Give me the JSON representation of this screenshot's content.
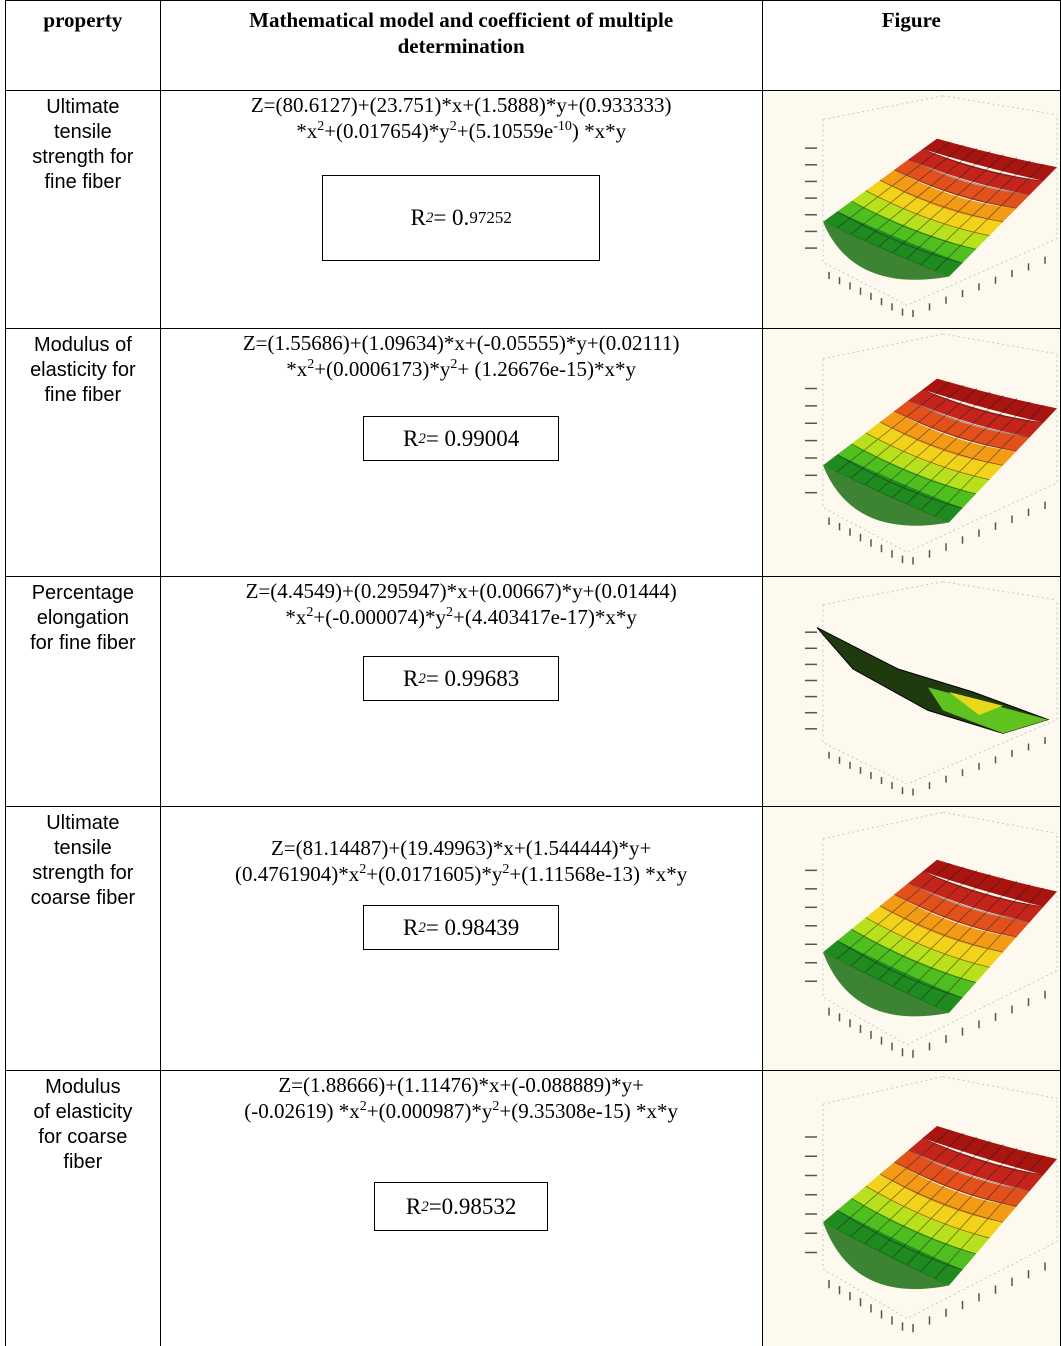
{
  "header": {
    "property": "property",
    "model": "Mathematical model and coefficient  of multiple determination",
    "figure": "Figure"
  },
  "rows": [
    {
      "property": [
        "Ultimate",
        "tensile",
        "strength for",
        "fine fiber"
      ],
      "eq_line1": "Z=(80.6127)+(23.751)*x+(1.5888)*y+(0.933333)",
      "eq_line2": [
        "*x",
        "2",
        "+(0.017654)*y",
        "2",
        "+(5.10559e",
        "-10",
        ") *x*y"
      ],
      "r2_label": "R",
      "r2_sup": "2",
      "r2_eq": " = 0.",
      "r2_value": "97252",
      "figure_icon": "3d-surface-plot"
    },
    {
      "property": [
        "Modulus of",
        "elasticity for",
        "fine fiber"
      ],
      "eq_line1": "Z=(1.55686)+(1.09634)*x+(-0.05555)*y+(0.02111)",
      "eq_line2": [
        "*x",
        "2",
        "+(0.0006173)*y",
        "2",
        "+ (1.26676e-15)*x*y"
      ],
      "r2_label": "R",
      "r2_sup": "2",
      "r2_text": " = 0.99004",
      "figure_icon": "3d-surface-plot"
    },
    {
      "property": [
        "Percentage",
        "elongation",
        "for fine fiber"
      ],
      "eq_line1": "Z=(4.4549)+(0.295947)*x+(0.00667)*y+(0.01444)",
      "eq_line2": [
        "*x",
        "2",
        "+(-0.000074)*y",
        "2",
        "+(4.403417e-17)*x*y"
      ],
      "r2_label": "R",
      "r2_sup": "2",
      "r2_text": " = 0.99683",
      "figure_icon": "3d-surface-plot"
    },
    {
      "property": [
        "Ultimate",
        "tensile",
        "strength for",
        "coarse fiber"
      ],
      "eq_line1": "Z=(81.14487)+(19.49963)*x+(1.544444)*y+",
      "eq_line2": [
        "(0.4761904)*x",
        "2",
        "+(0.0171605)*y",
        "2",
        "+(1.11568e-13) *x*y"
      ],
      "r2_label": "R",
      "r2_sup": "2",
      "r2_text": " = 0.98439",
      "figure_icon": "3d-surface-plot"
    },
    {
      "property": [
        "Modulus",
        "of elasticity",
        "for coarse",
        "fiber"
      ],
      "eq_line1": "Z=(1.88666)+(1.11476)*x+(-0.088889)*y+",
      "eq_line2": [
        "(-0.02619) *x",
        "2",
        "+(0.000987)*y",
        "2",
        "+(9.35308e-15) *x*y"
      ],
      "r2_label": "R",
      "r2_sup": "2",
      "r2_text": " =0.98532",
      "figure_icon": "3d-surface-plot"
    }
  ]
}
